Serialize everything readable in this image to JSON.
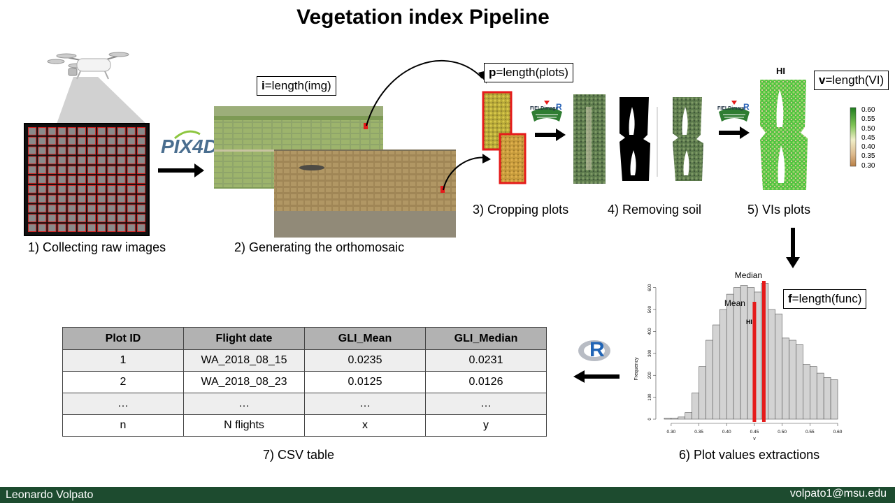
{
  "title": "Vegetation index Pipeline",
  "steps": {
    "s1": "1) Collecting raw images",
    "s2": "2) Generating the orthomosaic",
    "s3": "3) Cropping plots",
    "s4": "4) Removing soil",
    "s5": "5) VIs plots",
    "s6": "6) Plot values extractions",
    "s7": "7) CSV table"
  },
  "formulas": {
    "img": {
      "var": "i",
      "rest": "=length(img)"
    },
    "plots": {
      "var": "p",
      "rest": "=length(plots)"
    },
    "vi": {
      "var": "v",
      "rest": "=length(VI)"
    },
    "func": {
      "var": "f",
      "rest": "=length(func)"
    }
  },
  "logos": {
    "pix4d": "PIX4D",
    "fieldimage_1": "FIELDimage",
    "fieldimage_r1": "R",
    "fieldimage_2": "FIELDimage",
    "fieldimage_r2": "R",
    "r": "R"
  },
  "vi_plot": {
    "title": "HI",
    "legend": [
      "0.60",
      "0.55",
      "0.50",
      "0.45",
      "0.40",
      "0.35",
      "0.30"
    ],
    "colors": {
      "high": "#2e9b2e",
      "mid": "#e9e9b0",
      "low": "#c08a52"
    }
  },
  "histogram": {
    "median_label": "Median",
    "mean_label": "Mean",
    "title": "HI",
    "ylabel": "Frequency",
    "xlabel": "v"
  },
  "chart_data": {
    "type": "bar",
    "title": "HI",
    "xlabel": "v",
    "ylabel": "Frequency",
    "bin_width": 0.0125,
    "bin_starts": [
      0.2875,
      0.3,
      0.3125,
      0.325,
      0.3375,
      0.35,
      0.3625,
      0.375,
      0.3875,
      0.4,
      0.4125,
      0.425,
      0.4375,
      0.45,
      0.4625,
      0.475,
      0.4875,
      0.5,
      0.5125,
      0.525,
      0.5375,
      0.55,
      0.5625,
      0.575,
      0.5875
    ],
    "values": [
      5,
      5,
      10,
      30,
      120,
      240,
      360,
      430,
      500,
      570,
      600,
      610,
      600,
      580,
      620,
      500,
      480,
      370,
      360,
      340,
      250,
      240,
      210,
      190,
      180
    ],
    "xlim": [
      0.28,
      0.6
    ],
    "ylim": [
      0,
      650
    ],
    "x_ticks": [
      "0.30",
      "0.35",
      "0.40",
      "0.45",
      "0.50",
      "0.55",
      "0.60"
    ],
    "y_ticks": [
      "0",
      "100",
      "200",
      "300",
      "400",
      "500",
      "600"
    ],
    "mean": 0.45,
    "median": 0.467,
    "line_color": "#e51b1b",
    "bar_color": "#d3d3d3"
  },
  "table": {
    "headers": [
      "Plot ID",
      "Flight date",
      "GLI_Mean",
      "GLI_Median"
    ],
    "rows": [
      [
        "1",
        "WA_2018_08_15",
        "0.0235",
        "0.0231"
      ],
      [
        "2",
        "WA_2018_08_23",
        "0.0125",
        "0.0126"
      ],
      [
        "…",
        "…",
        "…",
        "…"
      ],
      [
        "n",
        "N flights",
        "x",
        "y"
      ]
    ]
  },
  "footer": {
    "author": "Leonardo  Volpato",
    "email": "volpato1@msu.edu"
  }
}
